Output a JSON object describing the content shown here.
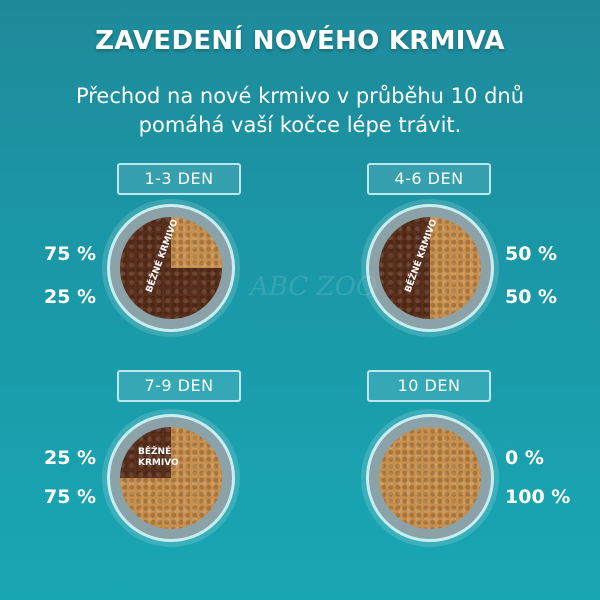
{
  "title": "ZAVEDENÍ NOVÉHO KRMIVA",
  "subtitle_line1": "Přechod na nové krmivo v průběhu 10 dnů",
  "subtitle_line2": "pomáhá vaší kočce lépe trávit.",
  "watermark": "ABC ZOO",
  "colors": {
    "old_food": "#5b2f1b",
    "new_food": "#c98f4c",
    "background": "#1a97a6"
  },
  "stages": [
    {
      "label": "1-3 DEN",
      "old_pct": "75 %",
      "new_pct": "25 %",
      "old_fraction": 0.75,
      "old_food_label": "BĚŽNÉ KRMIVO"
    },
    {
      "label": "4-6 DEN",
      "old_pct": "50 %",
      "new_pct": "50 %",
      "old_fraction": 0.5,
      "old_food_label": "BĚŽNÉ KRMIVO"
    },
    {
      "label": "7-9 DEN",
      "old_pct": "25 %",
      "new_pct": "75 %",
      "old_fraction": 0.25,
      "old_food_label": "BĚŽNÉ KRMIVO"
    },
    {
      "label": "10 DEN",
      "old_pct": "0 %",
      "new_pct": "100 %",
      "old_fraction": 0
    }
  ]
}
